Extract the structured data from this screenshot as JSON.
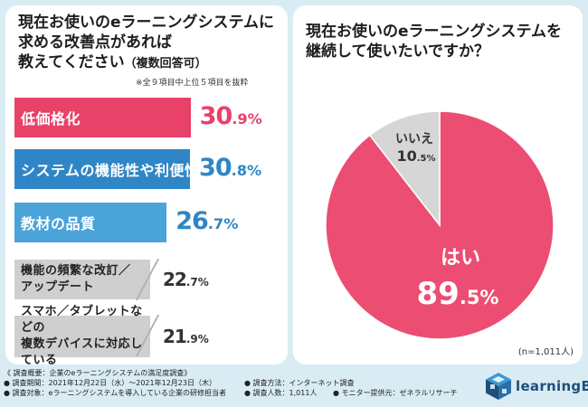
{
  "question1": {
    "title_line1": "現在お使いのeラーニングシステムに",
    "title_line2": "求める改善点があれば",
    "title_line3_main": "教えてください",
    "title_line3_sub": "（複数回答可）",
    "note": "※全９項目中上位５項目を抜粋"
  },
  "question2": {
    "title_line1": "現在お使いのeラーニングシステムを",
    "title_line2": "継続して使いたいですか？",
    "n_label": "(n=1,011人)"
  },
  "chart_data": [
    {
      "type": "bar",
      "orientation": "horizontal",
      "title": "現在お使いのeラーニングシステムに求める改善点があれば教えてください（複数回答可）",
      "categories": [
        "低価格化",
        "システムの機能性や利便性",
        "教材の品質",
        "機能の頻繁な改訂／アップデート",
        "スマホ／タブレットなどの複数デバイスに対応している"
      ],
      "display_labels": [
        "低価格化",
        "システムの機能性や利便性",
        "教材の品質",
        "機能の頻繁な改訂／\nアップデート",
        "スマホ／タブレットなどの\n複数デバイスに対応している"
      ],
      "values": [
        30.9,
        30.8,
        26.7,
        22.7,
        21.9
      ],
      "value_labels": [
        [
          "30",
          ".9%"
        ],
        [
          "30",
          ".8%"
        ],
        [
          "26",
          ".7%"
        ],
        [
          "22",
          ".7%"
        ],
        [
          "21",
          ".9%"
        ]
      ],
      "unit": "%",
      "colors": [
        "#e8416a",
        "#2f86c6",
        "#4aa3d9",
        "#cfcfcf",
        "#cfcfcf"
      ],
      "value_colors": [
        "#e8416a",
        "#2f86c6",
        "#2f86c6",
        "#333333",
        "#333333"
      ]
    },
    {
      "type": "pie",
      "title": "現在お使いのeラーニングシステムを継続して使いたいですか？",
      "labels": [
        "はい",
        "いいえ"
      ],
      "values": [
        89.5,
        10.5
      ],
      "value_labels": [
        [
          "89",
          ".5%"
        ],
        [
          "10",
          ".5%"
        ]
      ],
      "colors": [
        "#ec4d72",
        "#d6d6d6"
      ],
      "n": "(n=1,011人)"
    }
  ],
  "footer": {
    "line1": "《 調査概要：企業のeラーニングシステムの満足度調査》",
    "line2a": "● 調査期間：2021年12月22日（水）〜2021年12月23日（木）",
    "line2b": "● 調査方法：インターネット調査",
    "line3a": "● 調査対象：eラーニングシステムを導入している企業の研修担当者",
    "line3b": "● 調査人数：1,011人",
    "line3c": "● モニター提供元：ゼネラルリサーチ"
  },
  "logo": {
    "text": "learningBOX"
  }
}
